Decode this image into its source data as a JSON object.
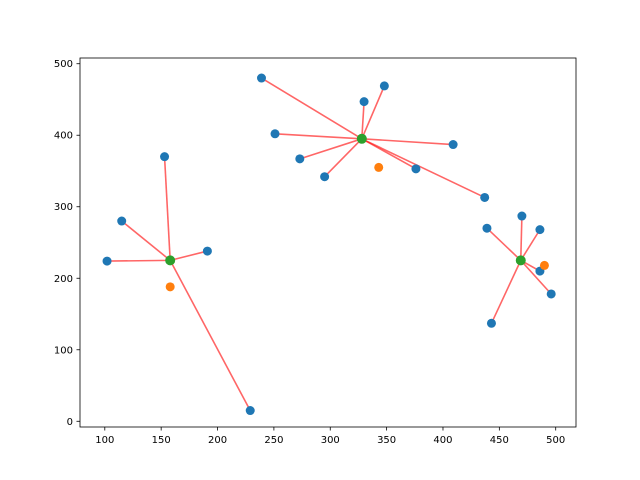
{
  "chart_data": {
    "type": "scatter",
    "title": "",
    "xlabel": "",
    "ylabel": "",
    "xlim": [
      78,
      518
    ],
    "ylim": [
      -8,
      508
    ],
    "x_ticks": [
      100,
      150,
      200,
      250,
      300,
      350,
      400,
      450,
      500
    ],
    "y_ticks": [
      0,
      100,
      200,
      300,
      400,
      500
    ],
    "grid": false,
    "legend": "none",
    "colors": {
      "points": "#1f77b4",
      "initial_centers": "#ff7f0e",
      "final_centers": "#2ca02c",
      "connections": "#ff0000"
    },
    "series": [
      {
        "role": "points",
        "points": [
          {
            "x": 102,
            "y": 224,
            "cluster": 0
          },
          {
            "x": 115,
            "y": 280,
            "cluster": 0
          },
          {
            "x": 153,
            "y": 370,
            "cluster": 0
          },
          {
            "x": 191,
            "y": 238,
            "cluster": 0
          },
          {
            "x": 229,
            "y": 15,
            "cluster": 0
          },
          {
            "x": 239,
            "y": 480,
            "cluster": 1
          },
          {
            "x": 251,
            "y": 402,
            "cluster": 1
          },
          {
            "x": 273,
            "y": 367,
            "cluster": 1
          },
          {
            "x": 295,
            "y": 342,
            "cluster": 1
          },
          {
            "x": 330,
            "y": 447,
            "cluster": 1
          },
          {
            "x": 348,
            "y": 469,
            "cluster": 1
          },
          {
            "x": 376,
            "y": 353,
            "cluster": 1
          },
          {
            "x": 409,
            "y": 387,
            "cluster": 1
          },
          {
            "x": 437,
            "y": 313,
            "cluster": 1
          },
          {
            "x": 439,
            "y": 270,
            "cluster": 2
          },
          {
            "x": 443,
            "y": 137,
            "cluster": 2
          },
          {
            "x": 470,
            "y": 287,
            "cluster": 2
          },
          {
            "x": 486,
            "y": 268,
            "cluster": 2
          },
          {
            "x": 486,
            "y": 210,
            "cluster": 2
          },
          {
            "x": 496,
            "y": 178,
            "cluster": 2
          }
        ]
      },
      {
        "role": "initial_centers",
        "points": [
          {
            "x": 158,
            "y": 188
          },
          {
            "x": 343,
            "y": 355
          },
          {
            "x": 490,
            "y": 218
          }
        ]
      },
      {
        "role": "final_centers",
        "points": [
          {
            "x": 158,
            "y": 225
          },
          {
            "x": 328,
            "y": 395
          },
          {
            "x": 469,
            "y": 225
          }
        ]
      }
    ]
  }
}
